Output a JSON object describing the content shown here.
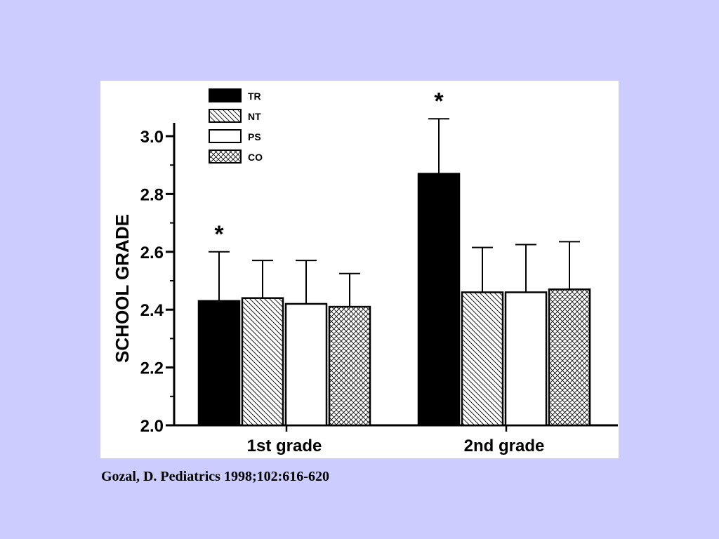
{
  "slide": {
    "background": "#ccccff",
    "citation": "Gozal, D. Pediatrics 1998;102:616-620"
  },
  "chart_data": {
    "type": "bar",
    "title": "",
    "xlabel": "",
    "ylabel": "SCHOOL GRADE",
    "ylim": [
      2.0,
      3.0
    ],
    "yticks": [
      "2.0",
      "2.2",
      "2.4",
      "2.6",
      "2.8",
      "3.0"
    ],
    "categories": [
      "1st grade",
      "2nd grade"
    ],
    "legend_position": "top-left",
    "grid": false,
    "series": [
      {
        "name": "TR",
        "values": [
          2.43,
          2.87
        ],
        "errors": [
          0.17,
          0.19
        ],
        "fill": "solid-black"
      },
      {
        "name": "NT",
        "values": [
          2.44,
          2.46
        ],
        "errors": [
          0.13,
          0.155
        ],
        "fill": "diagonal-hatch"
      },
      {
        "name": "PS",
        "values": [
          2.42,
          2.46
        ],
        "errors": [
          0.15,
          0.165
        ],
        "fill": "white"
      },
      {
        "name": "CO",
        "values": [
          2.41,
          2.47
        ],
        "errors": [
          0.115,
          0.165
        ],
        "fill": "crosshatch"
      }
    ],
    "significance": [
      {
        "category": "1st grade",
        "series": "TR",
        "mark": "*"
      },
      {
        "category": "2nd grade",
        "series": "TR",
        "mark": "*"
      }
    ]
  }
}
